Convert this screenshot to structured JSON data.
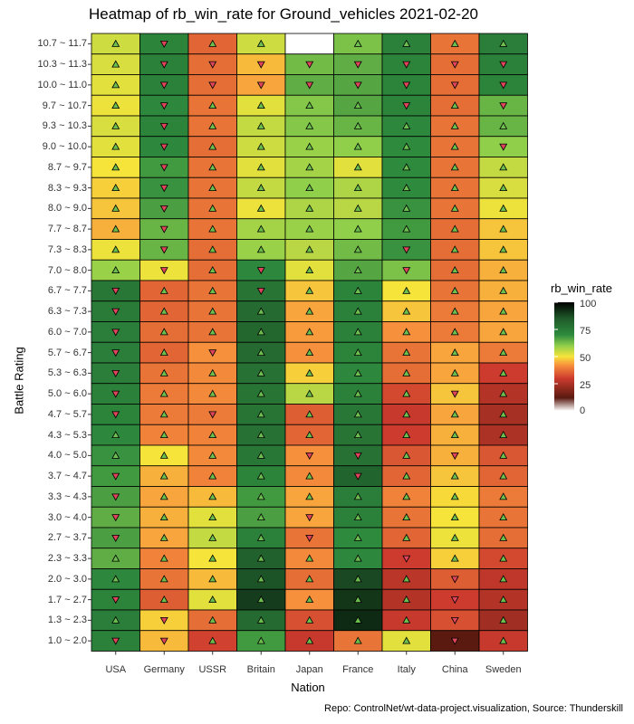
{
  "chart_data": {
    "type": "heatmap",
    "title": "Heatmap of rb_win_rate for Ground_vehicles 2021-02-20",
    "xlabel": "Nation",
    "ylabel": "Battle Rating",
    "caption": "Repo: ControlNet/wt-data-project.visualization, Source: Thunderskill",
    "x_categories": [
      "USA",
      "Germany",
      "USSR",
      "Britain",
      "Japan",
      "France",
      "Italy",
      "China",
      "Sweden"
    ],
    "y_categories": [
      "10.7 ~ 11.7",
      "10.3 ~ 11.3",
      "10.0 ~ 11.0",
      "9.7 ~ 10.7",
      "9.3 ~ 10.3",
      "9.0 ~ 10.0",
      "8.7 ~ 9.7",
      "8.3 ~ 9.3",
      "8.0 ~ 9.0",
      "7.7 ~ 8.7",
      "7.3 ~ 8.3",
      "7.0 ~ 8.0",
      "6.7 ~ 7.7",
      "6.3 ~ 7.3",
      "6.0 ~ 7.0",
      "5.7 ~ 6.7",
      "5.3 ~ 6.3",
      "5.0 ~ 6.0",
      "4.7 ~ 5.7",
      "4.3 ~ 5.3",
      "4.0 ~ 5.0",
      "3.7 ~ 4.7",
      "3.3 ~ 4.3",
      "3.0 ~ 4.0",
      "2.7 ~ 3.7",
      "2.3 ~ 3.3",
      "2.0 ~ 3.0",
      "1.7 ~ 2.7",
      "1.3 ~ 2.3",
      "1.0 ~ 2.0"
    ],
    "values": [
      [
        54,
        72,
        36,
        54,
        null,
        62,
        73,
        38,
        74
      ],
      [
        53,
        73,
        37,
        46,
        63,
        65,
        72,
        37,
        73
      ],
      [
        52,
        73,
        37,
        44,
        65,
        66,
        72,
        37,
        72
      ],
      [
        51,
        71,
        38,
        52,
        61,
        66,
        72,
        37,
        64
      ],
      [
        53,
        72,
        38,
        55,
        61,
        64,
        71,
        38,
        64
      ],
      [
        52,
        71,
        37,
        54,
        59,
        60,
        70,
        38,
        60
      ],
      [
        50,
        68,
        38,
        52,
        58,
        52,
        70,
        38,
        55
      ],
      [
        48,
        69,
        38,
        55,
        60,
        57,
        70,
        38,
        53
      ],
      [
        47,
        67,
        38,
        51,
        57,
        56,
        69,
        38,
        51
      ],
      [
        45,
        64,
        38,
        58,
        59,
        60,
        68,
        37,
        47
      ],
      [
        51,
        64,
        37,
        59,
        56,
        63,
        69,
        37,
        47
      ],
      [
        59,
        51,
        37,
        71,
        52,
        66,
        62,
        37,
        45
      ],
      [
        76,
        36,
        38,
        77,
        47,
        72,
        50,
        38,
        45
      ],
      [
        75,
        36,
        38,
        80,
        44,
        73,
        47,
        39,
        44
      ],
      [
        74,
        37,
        38,
        81,
        43,
        73,
        42,
        39,
        44
      ],
      [
        74,
        36,
        42,
        80,
        42,
        72,
        38,
        44,
        39
      ],
      [
        74,
        38,
        41,
        78,
        48,
        71,
        37,
        44,
        30
      ],
      [
        73,
        39,
        41,
        77,
        56,
        73,
        32,
        47,
        26
      ],
      [
        72,
        39,
        39,
        77,
        35,
        76,
        29,
        44,
        24
      ],
      [
        71,
        40,
        40,
        78,
        36,
        77,
        30,
        45,
        25
      ],
      [
        69,
        50,
        41,
        76,
        42,
        78,
        34,
        45,
        34
      ],
      [
        68,
        45,
        40,
        72,
        41,
        82,
        36,
        47,
        36
      ],
      [
        67,
        44,
        46,
        68,
        44,
        74,
        40,
        49,
        39
      ],
      [
        65,
        45,
        52,
        67,
        44,
        73,
        38,
        50,
        38
      ],
      [
        67,
        44,
        55,
        73,
        38,
        70,
        36,
        51,
        37
      ],
      [
        65,
        40,
        50,
        83,
        41,
        71,
        30,
        48,
        32
      ],
      [
        71,
        38,
        46,
        86,
        37,
        88,
        27,
        35,
        28
      ],
      [
        72,
        35,
        52,
        90,
        42,
        91,
        26,
        30,
        26
      ],
      [
        74,
        48,
        37,
        80,
        33,
        93,
        29,
        33,
        23
      ],
      [
        73,
        46,
        31,
        68,
        29,
        38,
        52,
        12,
        29
      ]
    ],
    "markers": [
      [
        "up",
        "down",
        "up",
        "up",
        null,
        "up",
        "up",
        "up",
        "up"
      ],
      [
        "up",
        "down",
        "down",
        "down",
        "down",
        "down",
        "down",
        "down",
        "down"
      ],
      [
        "up",
        "down",
        "down",
        "down",
        "down",
        "down",
        "down",
        "down",
        "down"
      ],
      [
        "up",
        "down",
        "up",
        "up",
        "up",
        "up",
        "down",
        "up",
        "down"
      ],
      [
        "up",
        "down",
        "up",
        "up",
        "up",
        "up",
        "up",
        "up",
        "up"
      ],
      [
        "up",
        "down",
        "up",
        "up",
        "up",
        "up",
        "up",
        "up",
        "down"
      ],
      [
        "up",
        "down",
        "up",
        "up",
        "up",
        "up",
        "up",
        "up",
        "up"
      ],
      [
        "up",
        "down",
        "up",
        "up",
        "up",
        "up",
        "up",
        "up",
        "up"
      ],
      [
        "up",
        "down",
        "up",
        "up",
        "up",
        "up",
        "up",
        "up",
        "up"
      ],
      [
        "up",
        "down",
        "up",
        "up",
        "up",
        "up",
        "up",
        "up",
        "up"
      ],
      [
        "up",
        "down",
        "up",
        "up",
        "up",
        "up",
        "down",
        "up",
        "up"
      ],
      [
        "up",
        "down",
        "up",
        "down",
        "up",
        "up",
        "down",
        "up",
        "up"
      ],
      [
        "down",
        "up",
        "up",
        "down",
        "up",
        "up",
        "up",
        "up",
        "up"
      ],
      [
        "down",
        "up",
        "up",
        "up",
        "up",
        "up",
        "up",
        "up",
        "up"
      ],
      [
        "down",
        "up",
        "up",
        "up",
        "up",
        "up",
        "up",
        "up",
        "up"
      ],
      [
        "down",
        "up",
        "down",
        "up",
        "up",
        "up",
        "up",
        "up",
        "up"
      ],
      [
        "down",
        "up",
        "up",
        "up",
        "up",
        "up",
        "up",
        "up",
        "up"
      ],
      [
        "down",
        "up",
        "up",
        "up",
        "up",
        "up",
        "up",
        "down",
        "up"
      ],
      [
        "down",
        "up",
        "down",
        "up",
        "up",
        "up",
        "up",
        "up",
        "up"
      ],
      [
        "up",
        "up",
        "up",
        "up",
        "up",
        "up",
        "up",
        "up",
        "up"
      ],
      [
        "up",
        "up",
        "up",
        "up",
        "down",
        "down",
        "up",
        "down",
        "up"
      ],
      [
        "down",
        "up",
        "up",
        "up",
        "up",
        "down",
        "up",
        "up",
        "up"
      ],
      [
        "down",
        "up",
        "up",
        "up",
        "up",
        "up",
        "up",
        "up",
        "up"
      ],
      [
        "down",
        "up",
        "up",
        "up",
        "down",
        "up",
        "up",
        "up",
        "up"
      ],
      [
        "down",
        "up",
        "up",
        "up",
        "down",
        "up",
        "up",
        "up",
        "up"
      ],
      [
        "up",
        "up",
        "up",
        "up",
        "up",
        "up",
        "down",
        "up",
        "up"
      ],
      [
        "up",
        "up",
        "up",
        "up",
        "up",
        "up",
        "up",
        "down",
        "up"
      ],
      [
        "down",
        "up",
        "up",
        "up",
        "up",
        "up",
        "up",
        "down",
        "up"
      ],
      [
        "up",
        "down",
        "up",
        "up",
        "up",
        "up",
        "up",
        "down",
        "up"
      ],
      [
        "down",
        "down",
        "up",
        "up",
        "up",
        "up",
        "up",
        "down",
        "up"
      ]
    ],
    "colorbar": {
      "title": "rb_win_rate",
      "range": [
        0,
        100
      ],
      "ticks": [
        "100",
        "75",
        "50",
        "25",
        "0"
      ],
      "stops": [
        {
          "value": 0,
          "color": "#ffffff"
        },
        {
          "value": 12,
          "color": "#5a1a10"
        },
        {
          "value": 30,
          "color": "#cc3b2e"
        },
        {
          "value": 42,
          "color": "#f7903c"
        },
        {
          "value": 50,
          "color": "#f7e43a"
        },
        {
          "value": 60,
          "color": "#8fcf4a"
        },
        {
          "value": 70,
          "color": "#2e8b3e"
        },
        {
          "value": 85,
          "color": "#1f5a2a"
        },
        {
          "value": 100,
          "color": "#000000"
        }
      ]
    }
  }
}
